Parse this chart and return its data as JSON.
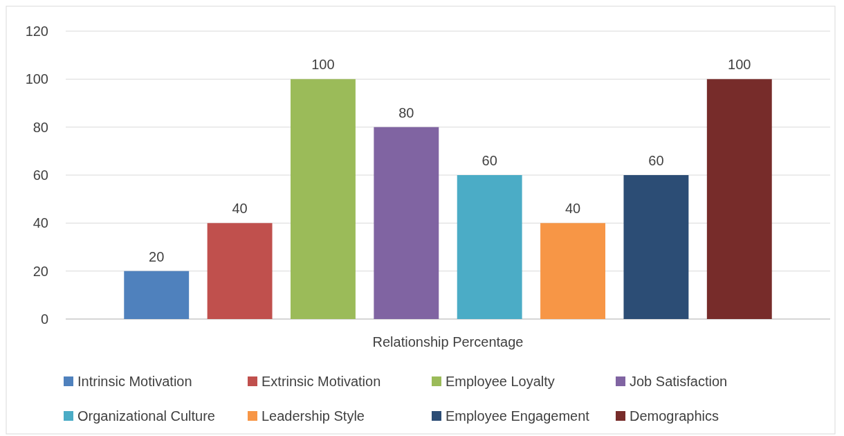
{
  "chart_data": {
    "type": "bar",
    "categories": [
      "Relationship Percentage"
    ],
    "series": [
      {
        "name": "Intrinsic Motivation",
        "color": "#4f81bd",
        "values": [
          20
        ]
      },
      {
        "name": "Extrinsic Motivation",
        "color": "#c0504d",
        "values": [
          40
        ]
      },
      {
        "name": "Employee Loyalty",
        "color": "#9bbb59",
        "values": [
          100
        ]
      },
      {
        "name": "Job Satisfaction",
        "color": "#8064a2",
        "values": [
          80
        ]
      },
      {
        "name": "Organizational Culture",
        "color": "#4bacc6",
        "values": [
          60
        ]
      },
      {
        "name": "Leadership Style",
        "color": "#f79646",
        "values": [
          40
        ]
      },
      {
        "name": "Employee Engagement",
        "color": "#2c4d75",
        "values": [
          60
        ]
      },
      {
        "name": "Demographics",
        "color": "#772c2a",
        "values": [
          100
        ]
      }
    ],
    "ylim": [
      0,
      120
    ],
    "yticks": [
      0,
      20,
      40,
      60,
      80,
      100,
      120
    ],
    "grid": "y",
    "legend": "bottom",
    "data_labels": true
  }
}
